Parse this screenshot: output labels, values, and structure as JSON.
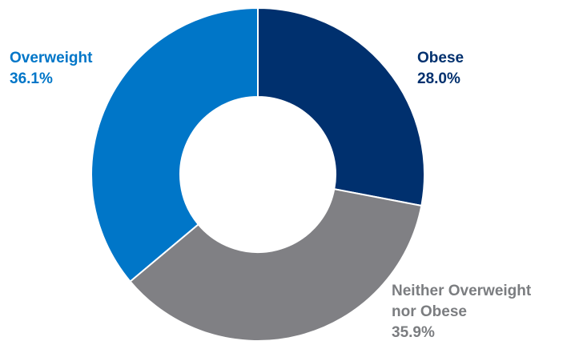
{
  "chart_data": {
    "type": "pie",
    "donut": true,
    "title": "",
    "categories": [
      "Obese",
      "Neither Overweight nor Obese",
      "Overweight"
    ],
    "values": [
      28.0,
      35.9,
      36.1
    ],
    "value_labels": [
      "28.0%",
      "35.9%",
      "36.1%"
    ],
    "colors": [
      "#00306e",
      "#808084",
      "#0076c8"
    ],
    "label_colors": [
      "#00306e",
      "#7b7d80",
      "#0076c8"
    ],
    "start_angle_deg": 0,
    "direction": "clockwise",
    "legend": "none"
  }
}
